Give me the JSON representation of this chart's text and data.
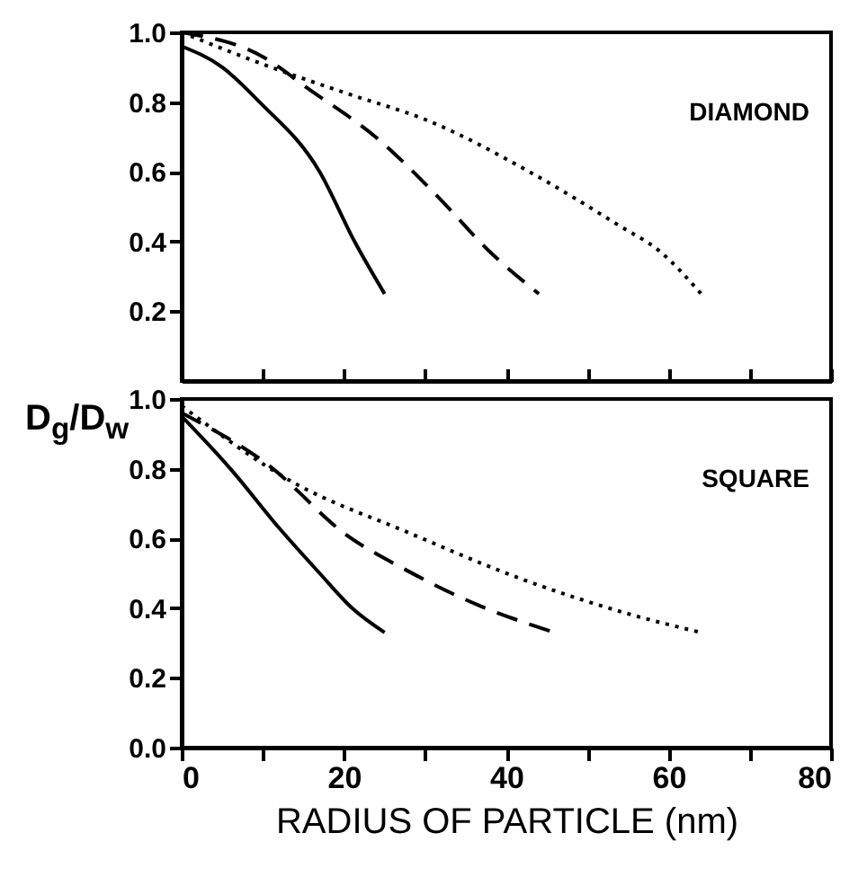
{
  "chart_data": [
    {
      "type": "line",
      "ylabel": "D$_{g}$/D$_{w}$",
      "annotations": [
        "DIAMOND"
      ],
      "xlim": [
        0,
        80
      ],
      "xticks": [
        {
          "value": 0,
          "label": null
        },
        {
          "value": 10,
          "label": null
        },
        {
          "value": 20,
          "label": null
        },
        {
          "value": 30,
          "label": null
        },
        {
          "value": 40,
          "label": null
        },
        {
          "value": 50,
          "label": null
        },
        {
          "value": 60,
          "label": null
        },
        {
          "value": 70,
          "label": null
        },
        {
          "value": 80,
          "label": null
        }
      ],
      "ylim": [
        0,
        1
      ],
      "yticks": [
        {
          "value": 0.2,
          "label": "0.2"
        },
        {
          "value": 0.4,
          "label": "0.4"
        },
        {
          "value": 0.6,
          "label": "0.6"
        },
        {
          "value": 0.8,
          "label": "0.8"
        },
        {
          "value": 1,
          "label": "1.0"
        }
      ],
      "tick_labels": "y",
      "series": [
        {
          "color": "#000000",
          "line_style": "solid",
          "x": [
            0,
            5,
            9.6,
            17,
            21.3,
            25
          ],
          "values": [
            0.96,
            0.9,
            0.8,
            0.6,
            0.4,
            0.25
          ]
        },
        {
          "color": "#000000",
          "line_style": "dashed",
          "x": [
            0,
            10,
            15.5,
            24.4,
            31.5,
            38,
            44
          ],
          "values": [
            1.0,
            0.93,
            0.84,
            0.69,
            0.53,
            0.37,
            0.25
          ]
        },
        {
          "color": "#000000",
          "line_style": "dotted",
          "x": [
            0,
            11,
            21,
            30,
            43.6,
            53.6,
            59,
            64
          ],
          "values": [
            1.0,
            0.9,
            0.82,
            0.75,
            0.59,
            0.45,
            0.37,
            0.25
          ]
        }
      ]
    },
    {
      "type": "line",
      "xlabel": "RADIUS OF PARTICLE (nm)",
      "annotations": [
        "SQUARE"
      ],
      "xlim": [
        0,
        80
      ],
      "xticks": [
        0,
        {
          "value": 10,
          "label": null
        },
        20,
        {
          "value": 30,
          "label": null
        },
        40,
        {
          "value": 50,
          "label": null
        },
        60,
        {
          "value": 70,
          "label": null
        },
        80
      ],
      "ylim": [
        0,
        1
      ],
      "yticks": [
        {
          "value": 0,
          "label": "0.0"
        },
        {
          "value": 0.2,
          "label": "0.2"
        },
        {
          "value": 0.4,
          "label": "0.4"
        },
        {
          "value": 0.6,
          "label": "0.6"
        },
        {
          "value": 0.8,
          "label": "0.8"
        },
        {
          "value": 1,
          "label": "1.0"
        }
      ],
      "series": [
        {
          "color": "#000000",
          "line_style": "solid",
          "x": [
            0,
            6,
            12,
            17,
            21,
            25
          ],
          "values": [
            0.95,
            0.8,
            0.63,
            0.5,
            0.4,
            0.33
          ]
        },
        {
          "color": "#000000",
          "line_style": "dashed",
          "x": [
            0,
            10.7,
            20.3,
            27.6,
            36.4,
            46
          ],
          "values": [
            0.96,
            0.81,
            0.61,
            0.51,
            0.41,
            0.33
          ]
        },
        {
          "color": "#000000",
          "line_style": "dotted",
          "x": [
            0,
            13.8,
            27.6,
            42.3,
            55.6,
            64
          ],
          "values": [
            0.98,
            0.76,
            0.62,
            0.48,
            0.38,
            0.33
          ]
        }
      ]
    }
  ]
}
